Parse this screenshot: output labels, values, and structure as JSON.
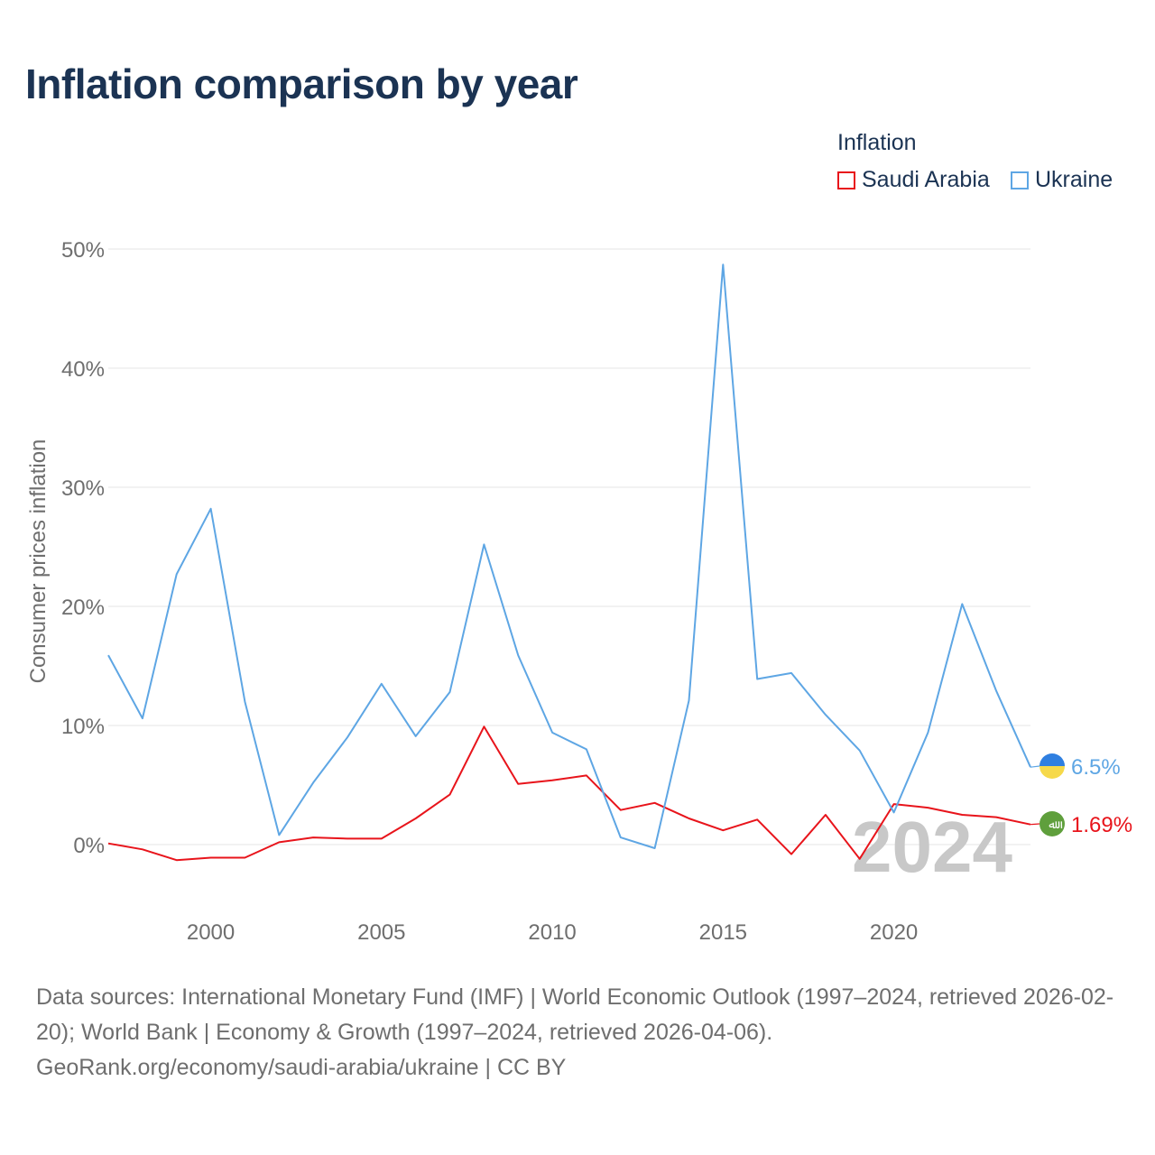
{
  "title": "Inflation comparison by year",
  "legend": {
    "title": "Inflation",
    "items": [
      {
        "label": "Saudi Arabia",
        "color": "#e8141b"
      },
      {
        "label": "Ukraine",
        "color": "#5ea6e4"
      }
    ]
  },
  "watermark_year": "2024",
  "source": {
    "line1": "Data sources: International Monetary Fund (IMF) | World Economic Outlook (1997–2024, retrieved 2026-02-20); World Bank | Economy & Growth (1997–2024, retrieved 2026-04-06).",
    "line2": "GeoRank.org/economy/saudi-arabia/ukraine | CC BY"
  },
  "colors": {
    "title": "#1b3353",
    "grid": "#e6e6e6",
    "tick_text": "#6e6e6e",
    "watermark": "#c8c8c8",
    "saudi_flag": "#5f9f3c",
    "ukraine_blue": "#2f7fe0",
    "ukraine_yellow": "#f6d94a"
  },
  "chart_data": {
    "type": "line",
    "title": "Inflation comparison by year",
    "xlabel": "",
    "ylabel": "Consumer prices inflation",
    "xlim": [
      1997,
      2024
    ],
    "ylim": [
      -5,
      52
    ],
    "x_ticks": [
      2000,
      2005,
      2010,
      2015,
      2020
    ],
    "x_tick_labels": [
      "2000",
      "2005",
      "2010",
      "2015",
      "2020"
    ],
    "y_ticks": [
      0,
      10,
      20,
      30,
      40,
      50
    ],
    "y_tick_labels": [
      "0%",
      "10%",
      "20%",
      "30%",
      "40%",
      "50%"
    ],
    "grid": true,
    "legend_position": "top-right",
    "x": [
      1997,
      1998,
      1999,
      2000,
      2001,
      2002,
      2003,
      2004,
      2005,
      2006,
      2007,
      2008,
      2009,
      2010,
      2011,
      2012,
      2013,
      2014,
      2015,
      2016,
      2017,
      2018,
      2019,
      2020,
      2021,
      2022,
      2023,
      2024
    ],
    "series": [
      {
        "name": "Saudi Arabia",
        "color": "#e8141b",
        "values": [
          0.1,
          -0.4,
          -1.3,
          -1.1,
          -1.1,
          0.2,
          0.6,
          0.5,
          0.5,
          2.2,
          4.2,
          9.9,
          5.1,
          5.4,
          5.8,
          2.9,
          3.5,
          2.2,
          1.2,
          2.1,
          -0.8,
          2.5,
          -1.2,
          3.4,
          3.1,
          2.5,
          2.3,
          1.69
        ],
        "end_label": "1.69%",
        "flag_glyph": "ﷲ"
      },
      {
        "name": "Ukraine",
        "color": "#5ea6e4",
        "values": [
          15.9,
          10.6,
          22.7,
          28.2,
          12.0,
          0.8,
          5.2,
          9.0,
          13.5,
          9.1,
          12.8,
          25.2,
          15.9,
          9.4,
          8.0,
          0.6,
          -0.3,
          12.1,
          48.7,
          13.9,
          14.4,
          10.9,
          7.9,
          2.7,
          9.4,
          20.2,
          12.9,
          6.5
        ],
        "end_label": "6.5%"
      }
    ]
  }
}
